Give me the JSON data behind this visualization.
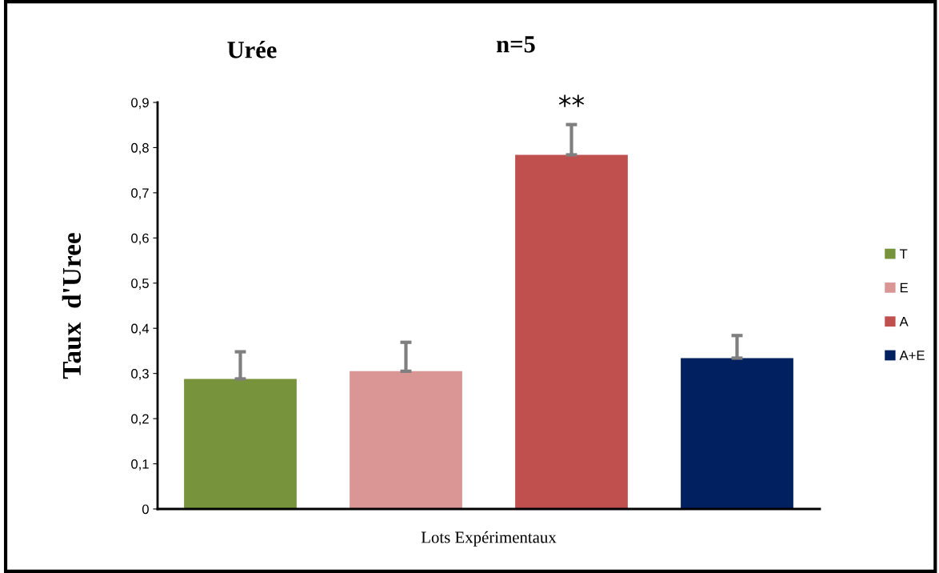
{
  "chart_data": {
    "type": "bar",
    "title": "Urée",
    "subtitle": "n=5",
    "xlabel": "Lots Expérimentaux",
    "ylabel": "Taux  d'Uree",
    "categories": [
      null,
      null,
      null,
      null
    ],
    "series": [
      {
        "name": "T",
        "color": "#77933c",
        "values": [
          0.288,
          null,
          null,
          null
        ],
        "errors": [
          [
            0.288,
            0.348
          ],
          null,
          null,
          null
        ]
      },
      {
        "name": "E",
        "color": "#d99694",
        "values": [
          null,
          0.305,
          null,
          null
        ],
        "errors": [
          null,
          [
            0.305,
            0.369
          ],
          null,
          null
        ]
      },
      {
        "name": "A",
        "color": "#c0504d",
        "values": [
          null,
          null,
          0.784,
          null
        ],
        "errors": [
          null,
          null,
          [
            0.784,
            0.851
          ],
          null
        ]
      },
      {
        "name": "A+E",
        "color": "#002060",
        "values": [
          null,
          null,
          null,
          0.334
        ],
        "errors": [
          null,
          null,
          null,
          [
            0.334,
            0.384
          ]
        ]
      }
    ],
    "annotations": [
      "**"
    ],
    "ylim": [
      0,
      0.9
    ],
    "yticks": [
      0,
      {
        "value": 0.1,
        "label": "0,1"
      },
      {
        "value": 0.2,
        "label": "0,2"
      },
      {
        "value": 0.3,
        "label": "0,3"
      },
      {
        "value": 0.4,
        "label": "0,4"
      },
      {
        "value": 0.5,
        "label": "0,5"
      },
      {
        "value": 0.6,
        "label": "0,6"
      },
      {
        "value": 0.7,
        "label": "0,7"
      },
      {
        "value": 0.8,
        "label": "0,8"
      },
      {
        "value": 0.9,
        "label": "0,9"
      }
    ],
    "tick_labels": "y",
    "grid": false,
    "legend": "right"
  }
}
